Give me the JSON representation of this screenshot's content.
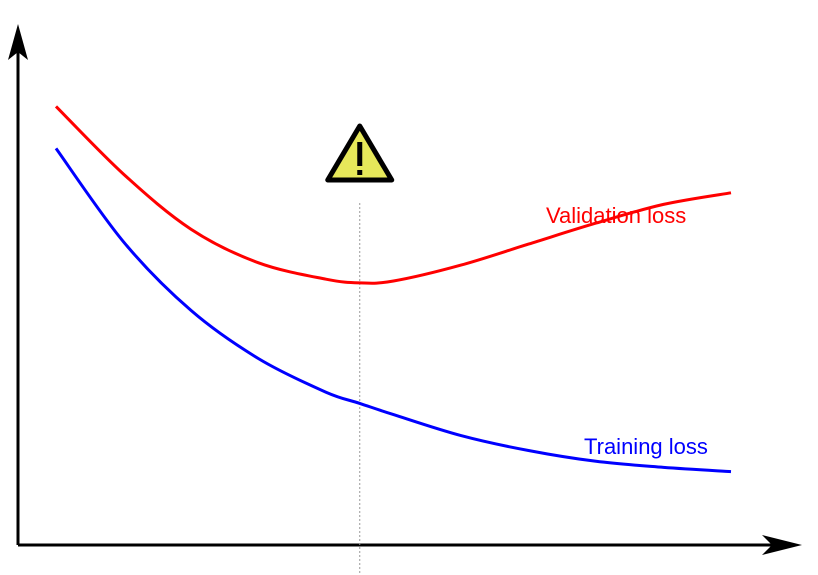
{
  "chart_data": {
    "type": "line",
    "title": "",
    "xlabel": "",
    "ylabel": "",
    "grid": false,
    "legend": "none",
    "xlim": [
      0,
      100
    ],
    "ylim": [
      0,
      100
    ],
    "series": [
      {
        "name": "Validation loss",
        "color": "#ff0000",
        "x": [
          0,
          10,
          20,
          30,
          40,
          45,
          50,
          60,
          70,
          80,
          90,
          100
        ],
        "y": [
          89,
          74.5,
          62.7,
          55.5,
          52,
          51.2,
          51.6,
          55,
          59.5,
          64,
          68,
          70.5
        ]
      },
      {
        "name": "Training loss",
        "color": "#0000ff",
        "x": [
          0,
          10,
          20,
          30,
          40,
          45,
          50,
          60,
          70,
          80,
          90,
          100
        ],
        "y": [
          80,
          60,
          45.3,
          35,
          27.8,
          25.4,
          23,
          18.5,
          15.3,
          13,
          11.7,
          10.8
        ]
      }
    ],
    "annotations": [
      {
        "type": "vertical-line",
        "x": 45,
        "style": "dotted",
        "color": "#999999"
      },
      {
        "type": "icon",
        "name": "warning-icon",
        "x": 45
      }
    ]
  }
}
